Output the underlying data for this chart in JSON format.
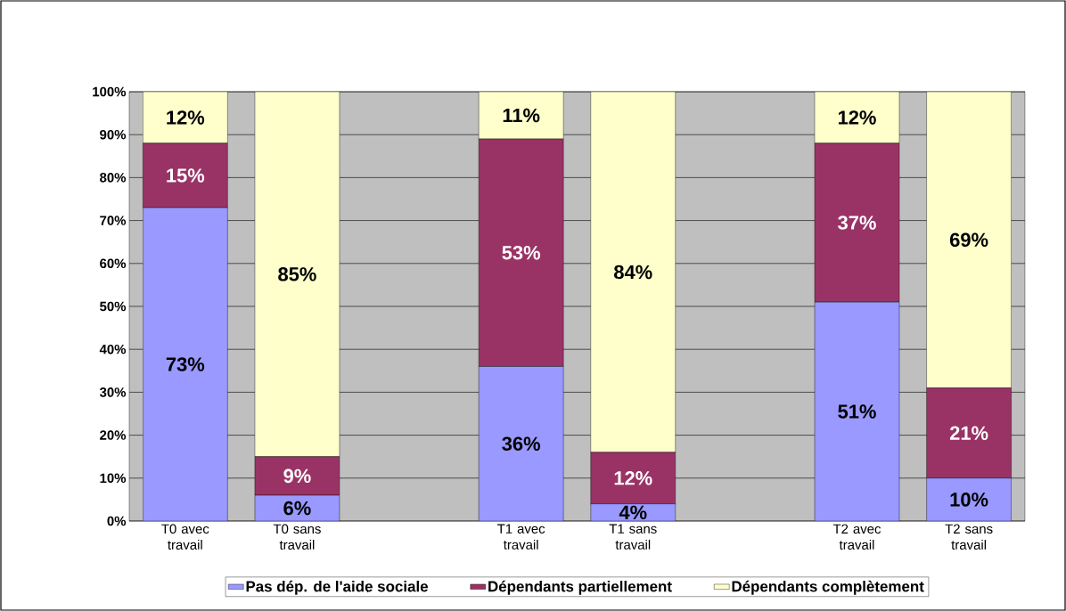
{
  "chart_data": {
    "type": "bar",
    "stacked": true,
    "categories": [
      "T0 avec travail",
      "T0 sans travail",
      null,
      "T1 avec travail",
      "T1 sans travail",
      null,
      "T2 avec travail",
      "T2 sans travail"
    ],
    "series": [
      {
        "name": "Pas dép. de l'aide sociale",
        "color": "#9999ff",
        "values": [
          73,
          6,
          null,
          36,
          4,
          null,
          51,
          10
        ],
        "value_labels": [
          "73%",
          "6%",
          null,
          "36%",
          "4%",
          null,
          "51%",
          "10%"
        ]
      },
      {
        "name": "Dépendants partiellement",
        "color": "#993366",
        "values": [
          15,
          9,
          null,
          53,
          12,
          null,
          37,
          21
        ],
        "value_labels": [
          "15%",
          "9%",
          null,
          "53%",
          "12%",
          null,
          "37%",
          "21%"
        ]
      },
      {
        "name": "Dépendants complètement",
        "color": "#ffffcc",
        "values": [
          12,
          85,
          null,
          11,
          84,
          null,
          12,
          69
        ],
        "value_labels": [
          "12%",
          "85%",
          null,
          "11%",
          "84%",
          null,
          "12%",
          "69%"
        ]
      }
    ],
    "ylim": [
      0,
      100
    ],
    "yticks": [
      {
        "value": 0,
        "label": "0%"
      },
      {
        "value": 10,
        "label": "10%"
      },
      {
        "value": 20,
        "label": "20%"
      },
      {
        "value": 30,
        "label": "30%"
      },
      {
        "value": 40,
        "label": "40%"
      },
      {
        "value": 50,
        "label": "50%"
      },
      {
        "value": 60,
        "label": "60%"
      },
      {
        "value": 70,
        "label": "70%"
      },
      {
        "value": 80,
        "label": "80%"
      },
      {
        "value": 90,
        "label": "90%"
      },
      {
        "value": 100,
        "label": "100%"
      }
    ],
    "grid": "y",
    "legend": "bottom"
  }
}
